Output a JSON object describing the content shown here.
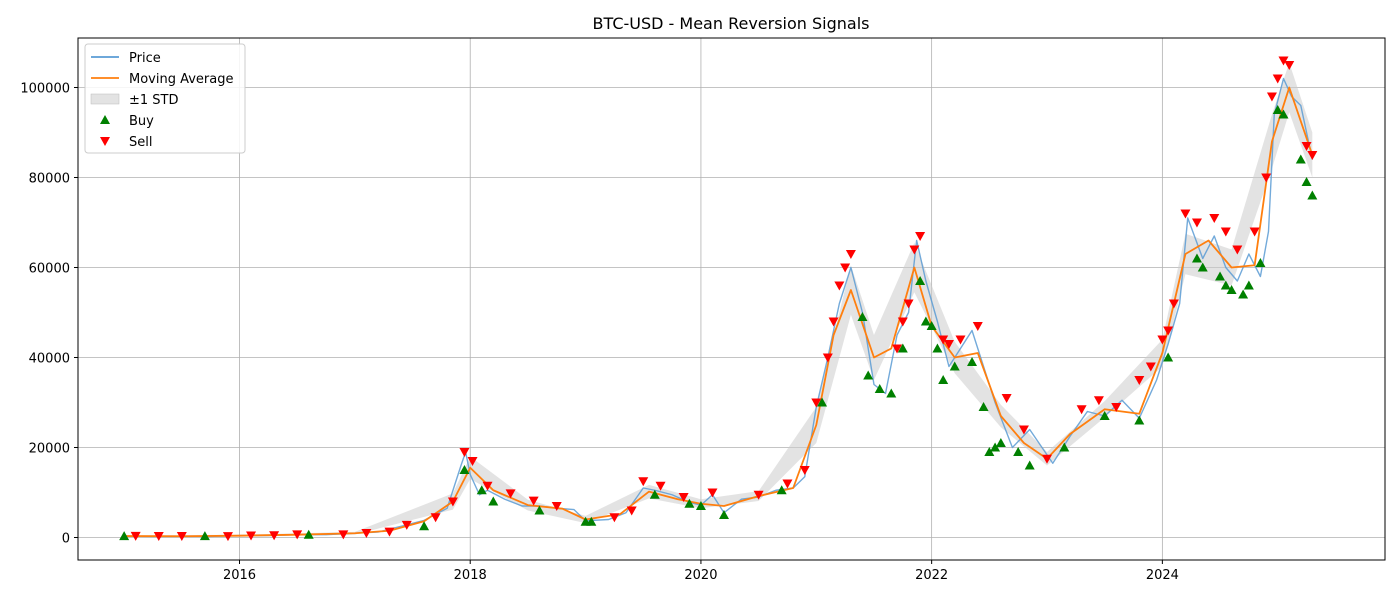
{
  "chart_data": {
    "type": "line",
    "title": "BTC-USD - Mean Reversion Signals",
    "xlabel": "",
    "ylabel": "",
    "xlim": [
      2014.6,
      2025.93
    ],
    "ylim": [
      -5000,
      111000
    ],
    "grid": true,
    "legend_position": "top-left",
    "x_ticks": [
      2016,
      2018,
      2020,
      2022,
      2024
    ],
    "x_tick_labels": [
      "2016",
      "2018",
      "2020",
      "2022",
      "2024"
    ],
    "y_ticks": [
      0,
      20000,
      40000,
      60000,
      80000,
      100000
    ],
    "y_tick_labels": [
      "0",
      "20000",
      "40000",
      "60000",
      "80000",
      "100000"
    ],
    "colors": {
      "price": "#5a9bd4",
      "moving_average": "#ff7f0e",
      "std_band": "#cccccc",
      "buy": "#008000",
      "sell": "#ff0000"
    },
    "legend": [
      {
        "label": "Price",
        "kind": "line",
        "color": "#5a9bd4"
      },
      {
        "label": "Moving Average",
        "kind": "line",
        "color": "#ff7f0e"
      },
      {
        "label": "±1 STD",
        "kind": "band",
        "color": "#cccccc"
      },
      {
        "label": "Buy",
        "kind": "up-triangle",
        "color": "#008000"
      },
      {
        "label": "Sell",
        "kind": "down-triangle",
        "color": "#ff0000"
      }
    ],
    "series": [
      {
        "name": "Price",
        "x": [
          2015.0,
          2015.25,
          2015.5,
          2015.75,
          2016.0,
          2016.25,
          2016.5,
          2016.75,
          2017.0,
          2017.2,
          2017.4,
          2017.6,
          2017.8,
          2017.92,
          2017.96,
          2018.0,
          2018.08,
          2018.15,
          2018.3,
          2018.45,
          2018.6,
          2018.75,
          2018.9,
          2019.0,
          2019.2,
          2019.35,
          2019.5,
          2019.6,
          2019.75,
          2019.9,
          2020.0,
          2020.1,
          2020.2,
          2020.35,
          2020.5,
          2020.65,
          2020.8,
          2020.9,
          2021.0,
          2021.1,
          2021.2,
          2021.3,
          2021.4,
          2021.5,
          2021.6,
          2021.7,
          2021.8,
          2021.87,
          2021.95,
          2022.05,
          2022.15,
          2022.25,
          2022.35,
          2022.45,
          2022.55,
          2022.7,
          2022.85,
          2022.97,
          2023.05,
          2023.2,
          2023.35,
          2023.5,
          2023.65,
          2023.8,
          2023.95,
          2024.05,
          2024.15,
          2024.22,
          2024.35,
          2024.45,
          2024.55,
          2024.65,
          2024.75,
          2024.85,
          2024.92,
          2024.97,
          2025.05,
          2025.12,
          2025.2,
          2025.3
        ],
        "values": [
          300,
          250,
          280,
          250,
          430,
          420,
          650,
          620,
          960,
          1200,
          2500,
          3800,
          6500,
          16000,
          19000,
          14000,
          9500,
          10500,
          8500,
          7000,
          7000,
          6500,
          6200,
          3700,
          4000,
          5500,
          11000,
          10500,
          9500,
          7800,
          7200,
          9500,
          5500,
          8500,
          9000,
          10500,
          11000,
          13500,
          29000,
          40000,
          52000,
          60000,
          50000,
          34000,
          32000,
          45000,
          50000,
          66000,
          57000,
          48000,
          38000,
          42000,
          46000,
          38000,
          30000,
          20000,
          24000,
          19500,
          16500,
          22500,
          28000,
          27000,
          30500,
          26500,
          35000,
          43000,
          52000,
          71000,
          62000,
          67000,
          60000,
          57000,
          63000,
          58000,
          68000,
          94000,
          102000,
          98000,
          96000,
          84000
        ]
      },
      {
        "name": "Moving Average",
        "x": [
          2015.0,
          2015.5,
          2016.0,
          2016.5,
          2017.0,
          2017.3,
          2017.6,
          2017.85,
          2018.0,
          2018.2,
          2018.5,
          2018.8,
          2019.0,
          2019.3,
          2019.55,
          2019.8,
          2020.0,
          2020.2,
          2020.5,
          2020.8,
          2021.0,
          2021.15,
          2021.3,
          2021.5,
          2021.65,
          2021.85,
          2022.0,
          2022.2,
          2022.4,
          2022.6,
          2022.8,
          2023.0,
          2023.2,
          2023.5,
          2023.8,
          2024.0,
          2024.2,
          2024.4,
          2024.6,
          2024.8,
          2024.95,
          2025.1,
          2025.3
        ],
        "values": [
          320,
          280,
          400,
          620,
          950,
          1500,
          3600,
          8000,
          15500,
          10500,
          7200,
          6400,
          4000,
          5200,
          10200,
          8500,
          7500,
          7000,
          9200,
          11000,
          25000,
          45000,
          55000,
          40000,
          42000,
          60000,
          47000,
          40000,
          41000,
          27000,
          21000,
          17500,
          23000,
          28500,
          27500,
          41000,
          63000,
          66000,
          60000,
          60500,
          88000,
          100000,
          85000
        ]
      }
    ],
    "std_band": {
      "x": [
        2015.0,
        2016.0,
        2017.0,
        2017.85,
        2018.0,
        2018.5,
        2019.0,
        2019.55,
        2020.0,
        2020.5,
        2021.0,
        2021.3,
        2021.5,
        2021.85,
        2022.2,
        2022.6,
        2023.0,
        2023.5,
        2024.0,
        2024.2,
        2024.6,
        2024.95,
        2025.1,
        2025.3
      ],
      "values": [
        320,
        400,
        950,
        8000,
        15500,
        7200,
        4000,
        10200,
        7500,
        9200,
        25000,
        55000,
        40000,
        60000,
        40000,
        27000,
        17500,
        28500,
        41000,
        63000,
        60000,
        88000,
        100000,
        85000
      ],
      "spread": [
        150,
        200,
        300,
        1800,
        2500,
        1200,
        800,
        1500,
        1000,
        1100,
        4000,
        5500,
        5000,
        5500,
        3500,
        2500,
        1500,
        1800,
        3000,
        4500,
        4000,
        6000,
        5500,
        5000
      ]
    },
    "buy_signals": {
      "x": [
        2015.0,
        2015.7,
        2016.6,
        2017.6,
        2017.95,
        2018.1,
        2018.2,
        2018.6,
        2019.0,
        2019.05,
        2019.6,
        2019.9,
        2020.0,
        2020.2,
        2020.7,
        2021.05,
        2021.4,
        2021.45,
        2021.55,
        2021.65,
        2021.75,
        2021.9,
        2021.95,
        2022.0,
        2022.05,
        2022.1,
        2022.2,
        2022.35,
        2022.45,
        2022.5,
        2022.55,
        2022.6,
        2022.75,
        2022.85,
        2023.15,
        2023.5,
        2023.8,
        2024.05,
        2024.3,
        2024.35,
        2024.5,
        2024.55,
        2024.6,
        2024.7,
        2024.75,
        2024.85,
        2025.0,
        2025.05,
        2025.2,
        2025.25,
        2025.3
      ],
      "values": [
        300,
        300,
        600,
        2500,
        15000,
        10500,
        8000,
        6000,
        3500,
        3500,
        9500,
        7500,
        7000,
        5000,
        10500,
        30000,
        49000,
        36000,
        33000,
        32000,
        42000,
        57000,
        48000,
        47000,
        42000,
        35000,
        38000,
        39000,
        29000,
        19000,
        20000,
        21000,
        19000,
        16000,
        20000,
        27000,
        26000,
        40000,
        62000,
        60000,
        58000,
        56000,
        55000,
        54000,
        56000,
        61000,
        95000,
        94000,
        84000,
        79000,
        76000
      ]
    },
    "sell_signals": {
      "x": [
        2015.1,
        2015.3,
        2015.5,
        2015.9,
        2016.1,
        2016.3,
        2016.5,
        2016.9,
        2017.1,
        2017.3,
        2017.45,
        2017.7,
        2017.85,
        2017.95,
        2018.02,
        2018.15,
        2018.35,
        2018.55,
        2018.75,
        2019.25,
        2019.4,
        2019.5,
        2019.65,
        2019.85,
        2020.1,
        2020.5,
        2020.75,
        2020.9,
        2021.0,
        2021.1,
        2021.15,
        2021.2,
        2021.25,
        2021.3,
        2021.7,
        2021.75,
        2021.8,
        2021.85,
        2021.9,
        2022.1,
        2022.15,
        2022.25,
        2022.4,
        2022.65,
        2022.8,
        2023.0,
        2023.3,
        2023.45,
        2023.6,
        2023.8,
        2023.9,
        2024.0,
        2024.05,
        2024.1,
        2024.2,
        2024.3,
        2024.45,
        2024.55,
        2024.65,
        2024.8,
        2024.9,
        2024.95,
        2025.0,
        2025.05,
        2025.1,
        2025.25,
        2025.3
      ],
      "values": [
        350,
        330,
        320,
        300,
        450,
        500,
        700,
        700,
        1000,
        1300,
        2800,
        4500,
        8000,
        19000,
        17000,
        11500,
        9800,
        8200,
        7000,
        4500,
        6000,
        12500,
        11500,
        9000,
        10000,
        9500,
        12000,
        15000,
        30000,
        40000,
        48000,
        56000,
        60000,
        63000,
        42000,
        48000,
        52000,
        64000,
        67000,
        44000,
        43000,
        44000,
        47000,
        31000,
        24000,
        17500,
        28500,
        30500,
        29000,
        35000,
        38000,
        44000,
        46000,
        52000,
        72000,
        70000,
        71000,
        68000,
        64000,
        68000,
        80000,
        98000,
        102000,
        106000,
        105000,
        87000,
        85000
      ]
    }
  }
}
